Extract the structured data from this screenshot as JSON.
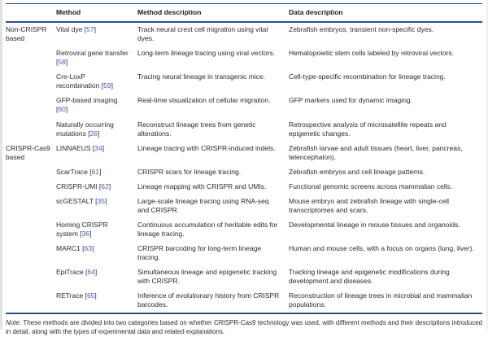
{
  "table": {
    "columns": [
      "",
      "Method",
      "Method description",
      "Data description"
    ],
    "groups": [
      {
        "label": "Non-CRISPR based",
        "rows": [
          {
            "method": "Vital dye",
            "ref": "57",
            "method_description": "Track neural crest cell migration using vital dyes.",
            "data_description": "Zebrafish embryos, transient non-specific dyes."
          },
          {
            "method": "Retroviral gene transfer",
            "ref": "58",
            "method_description": "Long-term lineage tracing using viral vectors.",
            "data_description": "Hematopoietic stem cells labeled by retroviral vectors."
          },
          {
            "method": "Cre-LoxP recombination",
            "ref": "59",
            "method_description": "Tracing neural lineage in transgenic mice.",
            "data_description": "Cell-type-specific recombination for lineage tracing."
          },
          {
            "method": "GFP-based imaging",
            "ref": "60",
            "method_description": "Real-time visualization of cellular migration.",
            "data_description": "GFP markers used for dynamic imaging."
          },
          {
            "method": "Naturally occurring mutations",
            "ref": "26",
            "method_description": "Reconstruct lineage trees from genetic alterations.",
            "data_description": "Retrospective analysis of microsatellite repeats and epigenetic changes."
          }
        ]
      },
      {
        "label": "CRISPR-Cas9 based",
        "rows": [
          {
            "method": "LINNAEUS",
            "ref": "34",
            "method_description": "Lineage tracing with CRISPR-induced indels.",
            "data_description": "Zebrafish larvae and adult tissues (heart, liver, pancreas, telencephalon)."
          },
          {
            "method": "ScarTrace",
            "ref": "61",
            "method_description": "CRISPR scars for lineage tracing.",
            "data_description": "Zebrafish embryos and cell lineage patterns."
          },
          {
            "method": "CRISPR-UMI",
            "ref": "62",
            "method_description": "Lineage mapping with CRISPR and UMIs.",
            "data_description": "Functional genomic screens across mammalian cells."
          },
          {
            "method": "scGESTALT",
            "ref": "35",
            "method_description": "Large-scale lineage tracing using RNA-seq and CRISPR.",
            "data_description": "Mouse embryo and zebrafish lineage with single-cell transcriptomes and scars."
          },
          {
            "method": "Homing CRISPR system",
            "ref": "36",
            "method_description": "Continuous accumulation of heritable edits for lineage tracing.",
            "data_description": "Developmental lineage in mouse tissues and organoids."
          },
          {
            "method": "MARC1",
            "ref": "63",
            "method_description": "CRISPR barcoding for long-term lineage tracing.",
            "data_description": "Human and mouse cells, with a focus on organs (lung, liver)."
          },
          {
            "method": "EpiTrace",
            "ref": "64",
            "method_description": "Simultaneous lineage and epigenetic tracking with CRISPR.",
            "data_description": "Tracking lineage and epigenetic modifications during development and diseases."
          },
          {
            "method": "RETrace",
            "ref": "65",
            "method_description": "Inference of evolutionary history from CRISPR barcodes.",
            "data_description": "Reconstruction of lineage trees in microbial and mammalian populations."
          }
        ]
      }
    ]
  },
  "note": {
    "label": "Note",
    "text": ": These methods are divided into two categories based on whether CRISPR-Cas9 technology was used, with different methods and their descriptions introduced in detail, along with the types of experimental data and related explanations."
  },
  "colors": {
    "rule": "#27508f",
    "link": "#3d5cc5",
    "text": "#2b2b2b"
  }
}
